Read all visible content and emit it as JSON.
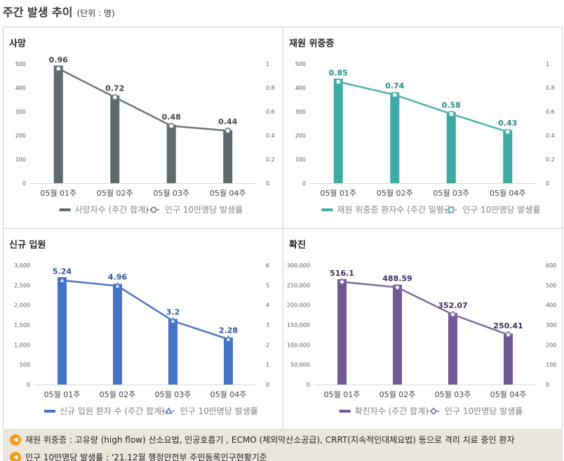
{
  "header": {
    "title": "주간 발생 추이",
    "unit": "(단위 : 명)"
  },
  "chart_data": [
    {
      "type": "bar",
      "title": "사망",
      "categories": [
        "05월 01주",
        "05월 02주",
        "05월 03주",
        "05월 04주"
      ],
      "bar_series": {
        "name": "사망자수 (주간 합계)",
        "values": [
          493,
          368,
          245,
          222
        ],
        "color": "#5f6b6b"
      },
      "line_series": {
        "name": "인구 10만명당 발생률",
        "values": [
          0.96,
          0.72,
          0.48,
          0.44
        ],
        "labels": [
          "0.96",
          "0.72",
          "0.48",
          "0.44"
        ],
        "color": "#6d7575",
        "marker": "circle",
        "label_color": "#404848"
      },
      "y_left": {
        "range": [
          0,
          500
        ],
        "ticks": [
          "0",
          "100",
          "200",
          "300",
          "400",
          "500"
        ]
      },
      "y_right": {
        "range": [
          0,
          1
        ],
        "ticks": [
          "0",
          "0.2",
          "0.4",
          "0.6",
          "0.8",
          "1"
        ]
      }
    },
    {
      "type": "bar",
      "title": "재원 위중증",
      "categories": [
        "05월 01주",
        "05월 02주",
        "05월 03주",
        "05월 04주"
      ],
      "bar_series": {
        "name": "재원 위중증 환자수 (주간 일평균)",
        "values": [
          438,
          380,
          298,
          222
        ],
        "color": "#3fa9a3"
      },
      "line_series": {
        "name": "인구 10만명당 발생률",
        "values": [
          0.85,
          0.74,
          0.58,
          0.43
        ],
        "labels": [
          "0.85",
          "0.74",
          "0.58",
          "0.43"
        ],
        "color": "#4fb3ad",
        "marker": "square",
        "label_color": "#2a8a86"
      },
      "y_left": {
        "range": [
          0,
          500
        ],
        "ticks": [
          "0",
          "100",
          "200",
          "300",
          "400",
          "500"
        ]
      },
      "y_right": {
        "range": [
          0,
          1
        ],
        "ticks": [
          "0",
          "0.2",
          "0.4",
          "0.6",
          "0.8",
          "1"
        ]
      }
    },
    {
      "type": "bar",
      "title": "신규 입원",
      "categories": [
        "05월 01주",
        "05월 02주",
        "05월 03주",
        "05월 04주"
      ],
      "bar_series": {
        "name": "신규 입원 환자 수 (주간 합계)",
        "values": [
          2700,
          2530,
          1650,
          1180
        ],
        "color": "#4472c4"
      },
      "line_series": {
        "name": "인구 10만명당 발생률",
        "values": [
          5.24,
          4.96,
          3.2,
          2.28
        ],
        "labels": [
          "5.24",
          "4.96",
          "3.2",
          "2.28"
        ],
        "color": "#4a78c6",
        "marker": "triangle",
        "label_color": "#2b55a0"
      },
      "y_left": {
        "range": [
          0,
          3000
        ],
        "ticks": [
          "0",
          "500",
          "1,000",
          "1,500",
          "2,000",
          "2,500",
          "3,000"
        ]
      },
      "y_right": {
        "range": [
          0,
          6
        ],
        "ticks": [
          "0",
          "1",
          "2",
          "3",
          "4",
          "5",
          "6"
        ]
      }
    },
    {
      "type": "bar",
      "title": "확진",
      "categories": [
        "05월 01주",
        "05월 02주",
        "05월 03주",
        "05월 04주"
      ],
      "bar_series": {
        "name": "확진자수 (주간 합계)",
        "values": [
          265000,
          251000,
          180000,
          128000
        ],
        "color": "#6f5a96"
      },
      "line_series": {
        "name": "인구 10만명당 발생률",
        "values": [
          516.1,
          488.59,
          352.07,
          250.41
        ],
        "labels": [
          "516.1",
          "488.59",
          "352.07",
          "250.41"
        ],
        "color": "#7d6aa3",
        "marker": "diamond",
        "label_color": "#3e3060"
      },
      "y_left": {
        "range": [
          0,
          300000
        ],
        "ticks": [
          "0",
          "50,000",
          "100,000",
          "150,000",
          "200,000",
          "250,000",
          "300,000"
        ]
      },
      "y_right": {
        "range": [
          0,
          600
        ],
        "ticks": [
          "0",
          "100",
          "200",
          "300",
          "400",
          "500",
          "600"
        ]
      }
    }
  ],
  "notes": [
    {
      "icon": "speaker-icon",
      "text": "재원 위중증 : 고유량 (high flow) 산소요법, 인공호흡기 , ECMO (체외막산소공급), CRRT(지속적인대체요법) 등으로 격리 치료 중인 환자"
    },
    {
      "icon": "speaker-icon",
      "text": "인구 10만명당 발생률 : '21.12월 행정안전부 주민등록인구현황기준"
    }
  ]
}
